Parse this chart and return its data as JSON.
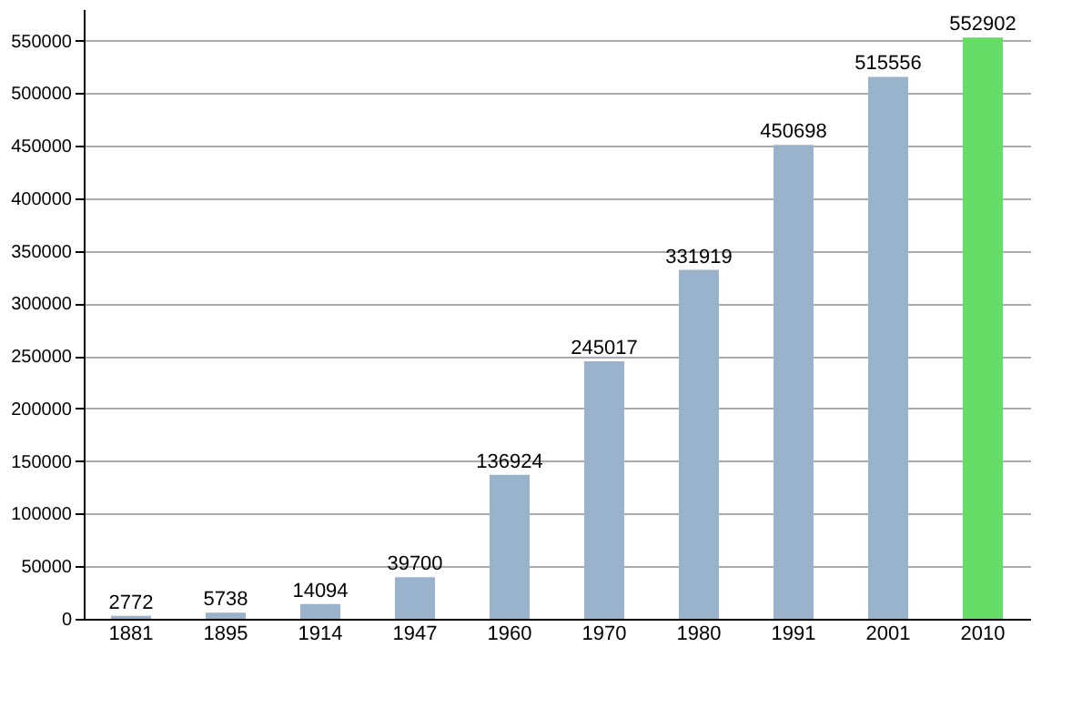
{
  "chart_data": {
    "type": "bar",
    "categories": [
      "1881",
      "1895",
      "1914",
      "1947",
      "1960",
      "1970",
      "1980",
      "1991",
      "2001",
      "2010"
    ],
    "values": [
      2772,
      5738,
      14094,
      39700,
      136924,
      245017,
      331919,
      450698,
      515556,
      552902
    ],
    "colors": [
      "#99b3cc",
      "#99b3cc",
      "#99b3cc",
      "#99b3cc",
      "#99b3cc",
      "#99b3cc",
      "#99b3cc",
      "#99b3cc",
      "#99b3cc",
      "#66dd66"
    ],
    "ylim": [
      0,
      580000
    ],
    "yticks": [
      0,
      50000,
      100000,
      150000,
      200000,
      250000,
      300000,
      350000,
      400000,
      450000,
      500000,
      550000
    ],
    "grid": "y",
    "data_labels": true
  }
}
